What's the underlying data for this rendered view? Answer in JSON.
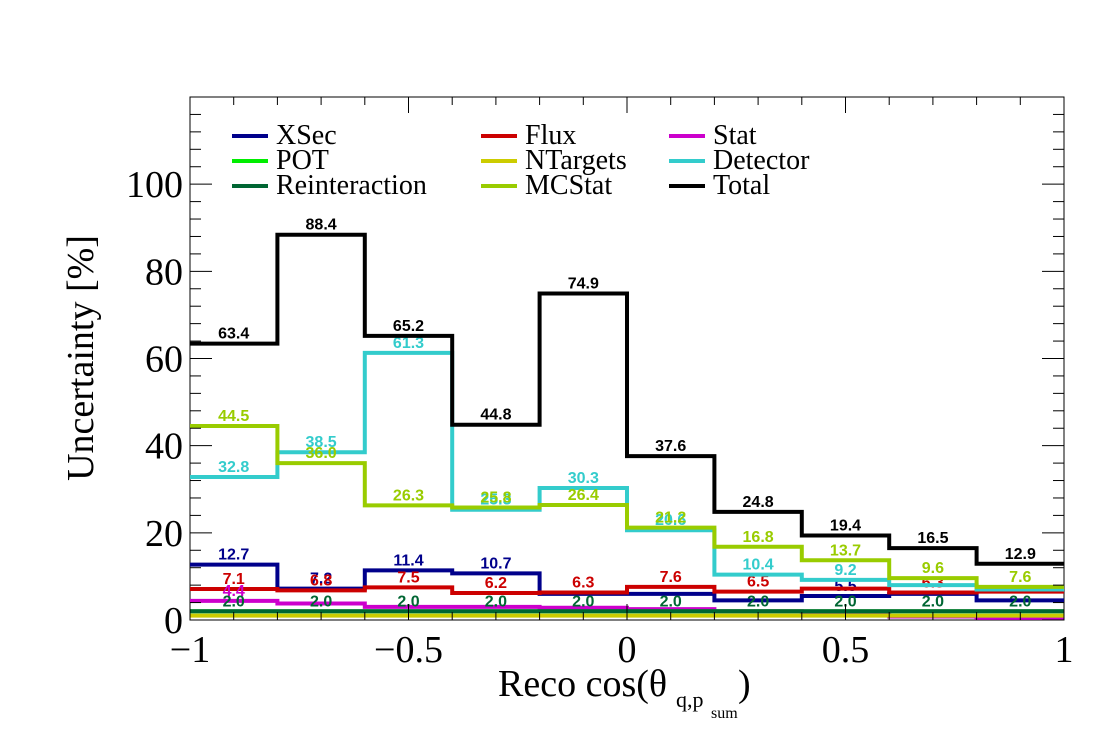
{
  "chart_data": {
    "type": "line",
    "step": true,
    "xlabel": "Reco cos(θ",
    "xlabel_subscript": "q,p",
    "xlabel_subscript_sub": "sum",
    "xlabel_close": ")",
    "ylabel": "Uncertainty [%]",
    "xlim": [
      -1,
      1
    ],
    "ylim": [
      0,
      120
    ],
    "x_ticks": [
      -1,
      -0.5,
      0,
      0.5,
      1
    ],
    "x_tick_labels": [
      "−1",
      "−0.5",
      "0",
      "0.5",
      "1"
    ],
    "y_ticks": [
      0,
      20,
      40,
      60,
      80,
      100
    ],
    "y_tick_labels": [
      "0",
      "20",
      "40",
      "60",
      "80",
      "100"
    ],
    "bin_edges": [
      -1,
      -0.8,
      -0.6,
      -0.4,
      -0.2,
      0,
      0.2,
      0.4,
      0.6,
      0.8,
      1
    ],
    "legend_position": "top",
    "series": [
      {
        "name": "XSec",
        "color": "#00008b",
        "values": [
          12.7,
          7.2,
          11.4,
          10.7,
          6.0,
          6.0,
          4.5,
          5.5,
          6.0,
          4.5
        ],
        "labels": [
          "12.7",
          "7.2",
          "11.4",
          "10.7",
          "",
          "",
          "",
          "5.5",
          "",
          ""
        ]
      },
      {
        "name": "Flux",
        "color": "#cc0000",
        "values": [
          7.1,
          6.8,
          7.5,
          6.2,
          6.3,
          7.6,
          6.5,
          7.2,
          6.3,
          6.5
        ],
        "labels": [
          "7.1",
          "6.8",
          "7.5",
          "6.2",
          "6.3",
          "7.6",
          "6.5",
          "",
          "6.3",
          ""
        ]
      },
      {
        "name": "Stat",
        "color": "#cc00cc",
        "values": [
          4.4,
          3.8,
          3.0,
          3.0,
          2.8,
          2.5,
          2.0,
          1.5,
          0.8,
          0.5
        ],
        "labels": [
          "4.4",
          "",
          "",
          "",
          "",
          "",
          "",
          "",
          "",
          ""
        ]
      },
      {
        "name": "POT",
        "color": "#00ee00",
        "values": [
          2.0,
          2.0,
          2.0,
          2.0,
          2.0,
          2.0,
          2.0,
          2.0,
          2.0,
          2.0
        ],
        "labels": [
          "",
          "",
          "",
          "",
          "",
          "",
          "",
          "",
          "",
          ""
        ]
      },
      {
        "name": "NTargets",
        "color": "#cccc00",
        "values": [
          1.0,
          1.0,
          1.0,
          1.0,
          1.0,
          1.0,
          1.0,
          1.0,
          1.0,
          1.0
        ],
        "labels": [
          "",
          "",
          "",
          "",
          "",
          "",
          "",
          "",
          "",
          ""
        ]
      },
      {
        "name": "Detector",
        "color": "#33cccc",
        "values": [
          32.8,
          38.5,
          61.3,
          25.3,
          30.3,
          20.6,
          10.4,
          9.2,
          8.0,
          7.0
        ],
        "labels": [
          "32.8",
          "38.5",
          "61.3",
          "25.3",
          "30.3",
          "20.6",
          "10.4",
          "9.2",
          "",
          ""
        ]
      },
      {
        "name": "Reinteraction",
        "color": "#006633",
        "values": [
          2.0,
          2.0,
          2.0,
          2.0,
          2.0,
          2.0,
          2.0,
          2.0,
          2.0,
          2.0
        ],
        "labels": [
          "2.0",
          "2.0",
          "2.0",
          "2.0",
          "2.0",
          "2.0",
          "2.0",
          "2.0",
          "2.0",
          "2.0"
        ]
      },
      {
        "name": "MCStat",
        "color": "#99cc00",
        "values": [
          44.5,
          36.0,
          26.3,
          25.8,
          26.4,
          21.2,
          16.8,
          13.7,
          9.6,
          7.6
        ],
        "labels": [
          "44.5",
          "36.0",
          "26.3",
          "25.8",
          "26.4",
          "21.2",
          "16.8",
          "13.7",
          "9.6",
          "7.6"
        ]
      },
      {
        "name": "Total",
        "color": "#000000",
        "values": [
          63.4,
          88.4,
          65.2,
          44.8,
          74.9,
          37.6,
          24.8,
          19.4,
          16.5,
          12.9
        ],
        "labels": [
          "63.4",
          "88.4",
          "65.2",
          "44.8",
          "74.9",
          "37.6",
          "24.8",
          "19.4",
          "16.5",
          "12.9"
        ]
      }
    ]
  }
}
